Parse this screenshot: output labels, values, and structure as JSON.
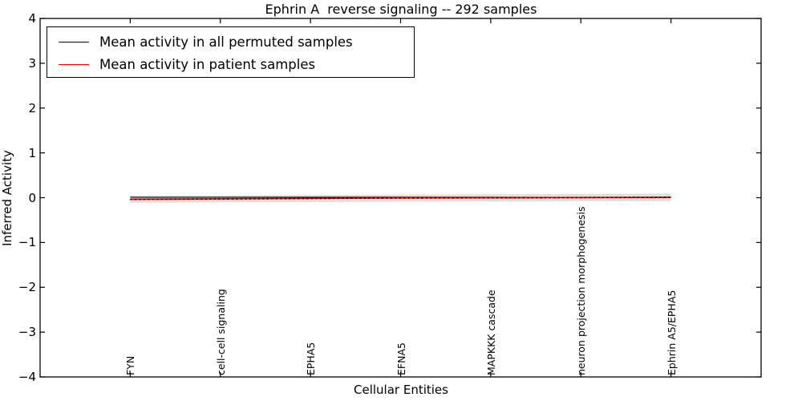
{
  "title": "Ephrin A  reverse signaling -- 292 samples",
  "axes": {
    "xlabel": "Cellular Entities",
    "ylabel": "Inferred Activity",
    "yticks": [
      4,
      3,
      2,
      1,
      0,
      -1,
      -2,
      -3,
      -4
    ],
    "ylim": [
      -4,
      4
    ],
    "xlim": [
      0,
      8
    ]
  },
  "legend": {
    "items": [
      {
        "label": "Mean activity in all permuted samples",
        "color": "#000000"
      },
      {
        "label": "Mean activity in patient samples",
        "color": "#ff0000"
      }
    ]
  },
  "colors": {
    "background": "#ffffff",
    "axis": "#000000",
    "band": "#e0e0e0",
    "permuted_line": "#000000",
    "patient_line": "#ff0000"
  },
  "chart_data": {
    "type": "line",
    "title": "Ephrin A  reverse signaling -- 292 samples",
    "xlabel": "Cellular Entities",
    "ylabel": "Inferred Activity",
    "ylim": [
      -4,
      4
    ],
    "grid": false,
    "legend_position": "upper left",
    "categories": [
      "FYN",
      "cell-cell signaling",
      "EPHA5",
      "EFNA5",
      "MAPKKK cascade",
      "neuron projection morphogenesis",
      "Ephrin A5/EPHA5"
    ],
    "series": [
      {
        "name": "Mean activity in all permuted samples",
        "color": "#000000",
        "style": "solid",
        "width": 1.2,
        "values": [
          0.01,
          0.01,
          0.01,
          0.01,
          0.01,
          0.005,
          0.005
        ]
      },
      {
        "name": "Mean activity in patient samples",
        "color": "#ff0000",
        "style": "solid",
        "width": 1.8,
        "values": [
          -0.035,
          -0.025,
          -0.015,
          -0.005,
          0.0,
          0.005,
          0.01
        ]
      },
      {
        "name": "unlabeled dotted line",
        "color": "#000000",
        "style": "dotted",
        "width": 1.4,
        "values": [
          -0.04,
          -0.03,
          -0.02,
          -0.01,
          -0.005,
          0.0,
          0.005
        ]
      }
    ],
    "band": {
      "name": "permuted samples band",
      "color": "#e0e0e0",
      "upper": [
        0.045,
        0.05,
        0.06,
        0.07,
        0.075,
        0.085,
        0.095
      ],
      "lower": [
        -0.115,
        -0.105,
        -0.1,
        -0.09,
        -0.085,
        -0.08,
        -0.08
      ]
    }
  }
}
